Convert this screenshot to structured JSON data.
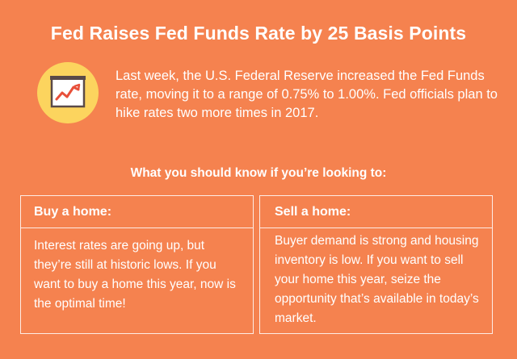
{
  "title": "Fed Raises Fed Funds Rate by 25 Basis Points",
  "intro": "Last week, the U.S. Federal Reserve increased the Fed Funds rate, moving it to a range of 0.75% to 1.00%. Fed officials plan to hike rates two more times in 2017.",
  "icon": "rising-chart-icon",
  "subhead": "What you should know if you’re looking to:",
  "cards": [
    {
      "heading": "Buy a home:",
      "body": "Interest rates are going up, but they’re still at historic lows. If you want to buy a home this year, now is the optimal time!"
    },
    {
      "heading": "Sell a home:",
      "body": "Buyer demand is strong and housing inventory is low. If you want to sell your home this year, seize the opportunity that’s available in today’s market."
    }
  ],
  "colors": {
    "background": "#f5824f",
    "icon_circle": "#fcd45e",
    "chart_line": "#e8503a",
    "chart_frame": "#5a4a48"
  }
}
